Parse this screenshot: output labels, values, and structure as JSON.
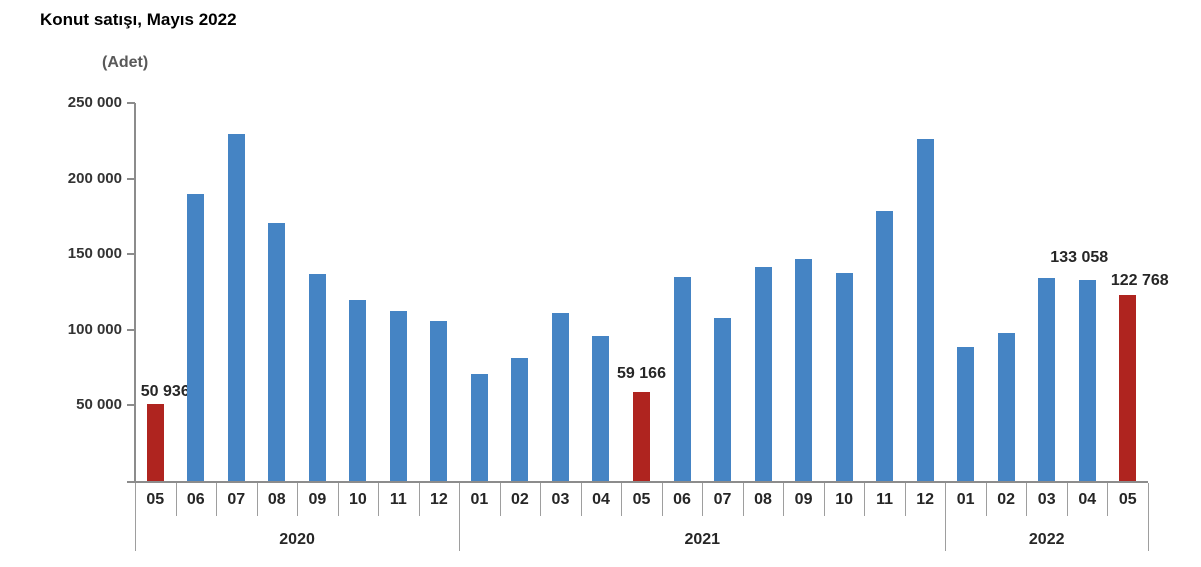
{
  "chart_data": {
    "type": "bar",
    "title": "Konut satışı, Mayıs 2022",
    "unit_label": "(Adet)",
    "y_axis": {
      "min": 0,
      "max": 250000,
      "tick_step": 50000,
      "tick_labels": [
        "250 000",
        "200 000",
        "150 000",
        "100 000",
        "50 000"
      ]
    },
    "grid": "off",
    "legend": "none",
    "colors": {
      "bar": "#4584C4",
      "highlight": "#AF241F",
      "axis": "#8C8C8C",
      "separator": "#9E9E9E",
      "text": "#262626",
      "unit_text": "#595959"
    },
    "year_groups": [
      {
        "label": "2020",
        "months": 8
      },
      {
        "label": "2021",
        "months": 12
      },
      {
        "label": "2022",
        "months": 5
      }
    ],
    "bars": [
      {
        "year": "2020",
        "month": "05",
        "value": 50936,
        "highlighted": true,
        "data_label": "50 936",
        "label_dx": 10,
        "label_gap": 4
      },
      {
        "year": "2020",
        "month": "06",
        "value": 190012,
        "highlighted": false
      },
      {
        "year": "2020",
        "month": "07",
        "value": 229357,
        "highlighted": false
      },
      {
        "year": "2020",
        "month": "08",
        "value": 170408,
        "highlighted": false
      },
      {
        "year": "2020",
        "month": "09",
        "value": 136744,
        "highlighted": false
      },
      {
        "year": "2020",
        "month": "10",
        "value": 119574,
        "highlighted": false
      },
      {
        "year": "2020",
        "month": "11",
        "value": 112483,
        "highlighted": false
      },
      {
        "year": "2020",
        "month": "12",
        "value": 105981,
        "highlighted": false
      },
      {
        "year": "2021",
        "month": "01",
        "value": 70587,
        "highlighted": false
      },
      {
        "year": "2021",
        "month": "02",
        "value": 81222,
        "highlighted": false
      },
      {
        "year": "2021",
        "month": "03",
        "value": 111241,
        "highlighted": false
      },
      {
        "year": "2021",
        "month": "04",
        "value": 95863,
        "highlighted": false
      },
      {
        "year": "2021",
        "month": "05",
        "value": 59166,
        "highlighted": true,
        "data_label": "59 166",
        "label_dx": 0,
        "label_gap": 10
      },
      {
        "year": "2021",
        "month": "06",
        "value": 134731,
        "highlighted": false
      },
      {
        "year": "2021",
        "month": "07",
        "value": 107785,
        "highlighted": false
      },
      {
        "year": "2021",
        "month": "08",
        "value": 141400,
        "highlighted": false
      },
      {
        "year": "2021",
        "month": "09",
        "value": 147143,
        "highlighted": false
      },
      {
        "year": "2021",
        "month": "10",
        "value": 137401,
        "highlighted": false
      },
      {
        "year": "2021",
        "month": "11",
        "value": 178814,
        "highlighted": false
      },
      {
        "year": "2021",
        "month": "12",
        "value": 226503,
        "highlighted": false
      },
      {
        "year": "2022",
        "month": "01",
        "value": 88306,
        "highlighted": false
      },
      {
        "year": "2022",
        "month": "02",
        "value": 97587,
        "highlighted": false
      },
      {
        "year": "2022",
        "month": "03",
        "value": 134170,
        "highlighted": false
      },
      {
        "year": "2022",
        "month": "04",
        "value": 133058,
        "highlighted": false,
        "data_label": "133 058",
        "label_dx": -8,
        "label_gap": 14
      },
      {
        "year": "2022",
        "month": "05",
        "value": 122768,
        "highlighted": true,
        "data_label": "122 768",
        "label_dx": 12,
        "label_gap": 6
      }
    ]
  }
}
